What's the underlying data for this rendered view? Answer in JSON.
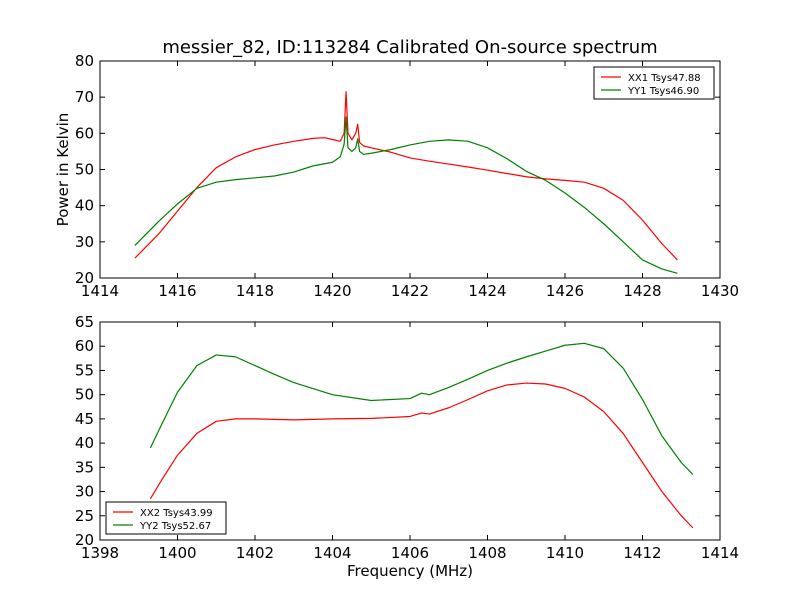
{
  "title": "messier_82, ID:113284 Calibrated On-source spectrum",
  "colors": {
    "red": "#ff0000",
    "green": "#008000",
    "axes": "#000000"
  },
  "chart_data": [
    {
      "type": "line",
      "ylabel": "Power in Kelvin",
      "xlabel": "",
      "xlim": [
        1414,
        1430
      ],
      "ylim": [
        20,
        80
      ],
      "xticks": [
        1414,
        1416,
        1418,
        1420,
        1422,
        1424,
        1426,
        1428,
        1430
      ],
      "yticks": [
        20,
        30,
        40,
        50,
        60,
        70,
        80
      ],
      "legend_position": "top-right",
      "grid": false,
      "series": [
        {
          "name": "XX1 Tsys47.88",
          "color": "#ff0000",
          "x": [
            1414.9,
            1415.5,
            1416.0,
            1416.5,
            1417.0,
            1417.5,
            1418.0,
            1418.5,
            1419.0,
            1419.5,
            1419.8,
            1420.0,
            1420.2,
            1420.3,
            1420.35,
            1420.4,
            1420.5,
            1420.6,
            1420.65,
            1420.7,
            1420.8,
            1421.0,
            1421.5,
            1422.0,
            1422.5,
            1423.0,
            1423.5,
            1424.0,
            1424.5,
            1425.0,
            1425.5,
            1426.0,
            1426.5,
            1427.0,
            1427.5,
            1428.0,
            1428.5,
            1428.9
          ],
          "y": [
            25.5,
            32,
            38.5,
            45,
            50.5,
            53.5,
            55.5,
            56.8,
            57.8,
            58.6,
            58.8,
            58.3,
            57.8,
            60,
            71.5,
            60,
            58.2,
            60,
            62.5,
            57.5,
            56.5,
            56,
            54.8,
            53.2,
            52.3,
            51.5,
            50.7,
            49.8,
            48.9,
            48,
            47.4,
            47,
            46.5,
            44.8,
            41.5,
            36,
            29.5,
            25
          ]
        },
        {
          "name": "YY1 Tsys46.90",
          "color": "#008000",
          "x": [
            1414.9,
            1415.5,
            1416.0,
            1416.5,
            1417.0,
            1417.5,
            1418.0,
            1418.5,
            1419.0,
            1419.5,
            1420.0,
            1420.2,
            1420.3,
            1420.35,
            1420.4,
            1420.5,
            1420.6,
            1420.65,
            1420.7,
            1420.8,
            1421.0,
            1421.5,
            1422.0,
            1422.5,
            1423.0,
            1423.5,
            1424.0,
            1424.5,
            1425.0,
            1425.5,
            1426.0,
            1426.5,
            1427.0,
            1427.5,
            1428.0,
            1428.5,
            1428.9
          ],
          "y": [
            29,
            35.5,
            40.5,
            44.8,
            46.5,
            47.2,
            47.7,
            48.2,
            49.3,
            51,
            52,
            53.5,
            57,
            64.5,
            56,
            55,
            56,
            58.5,
            55,
            54.2,
            54.5,
            55.5,
            56.8,
            57.8,
            58.2,
            57.8,
            56,
            53,
            49.5,
            47,
            43.5,
            39.5,
            35,
            30,
            25,
            22.5,
            21.3
          ]
        }
      ]
    },
    {
      "type": "line",
      "ylabel": "",
      "xlabel": "Frequency (MHz)",
      "xlim": [
        1398,
        1414
      ],
      "ylim": [
        20,
        65
      ],
      "xticks": [
        1398,
        1400,
        1402,
        1404,
        1406,
        1408,
        1410,
        1412,
        1414
      ],
      "yticks": [
        20,
        25,
        30,
        35,
        40,
        45,
        50,
        55,
        60,
        65
      ],
      "legend_position": "bottom-left",
      "grid": false,
      "series": [
        {
          "name": "XX2 Tsys43.99",
          "color": "#ff0000",
          "x": [
            1399.3,
            1399.6,
            1400.0,
            1400.5,
            1401.0,
            1401.5,
            1402.0,
            1403.0,
            1404.0,
            1405.0,
            1406.0,
            1406.3,
            1406.5,
            1407.0,
            1407.5,
            1408.0,
            1408.5,
            1409.0,
            1409.5,
            1410.0,
            1410.5,
            1411.0,
            1411.5,
            1412.0,
            1412.5,
            1413.0,
            1413.3
          ],
          "y": [
            28.5,
            32.5,
            37.5,
            42,
            44.5,
            45,
            45,
            44.8,
            45,
            45.1,
            45.5,
            46.2,
            46,
            47.3,
            49,
            50.8,
            52,
            52.4,
            52.2,
            51.3,
            49.5,
            46.5,
            42,
            36,
            30,
            25,
            22.5
          ]
        },
        {
          "name": "YY2 Tsys52.67",
          "color": "#008000",
          "x": [
            1399.3,
            1399.6,
            1400.0,
            1400.5,
            1401.0,
            1401.5,
            1402.0,
            1402.5,
            1403.0,
            1404.0,
            1405.0,
            1406.0,
            1406.3,
            1406.5,
            1407.0,
            1407.5,
            1408.0,
            1408.5,
            1409.0,
            1409.5,
            1410.0,
            1410.5,
            1411.0,
            1411.5,
            1412.0,
            1412.5,
            1413.0,
            1413.3
          ],
          "y": [
            39,
            44,
            50.5,
            56,
            58.2,
            57.8,
            56,
            54.2,
            52.5,
            50,
            48.8,
            49.2,
            50.3,
            50,
            51.5,
            53.2,
            55,
            56.5,
            57.8,
            59,
            60.2,
            60.6,
            59.5,
            55.5,
            49,
            41.5,
            36,
            33.5
          ]
        }
      ]
    }
  ]
}
